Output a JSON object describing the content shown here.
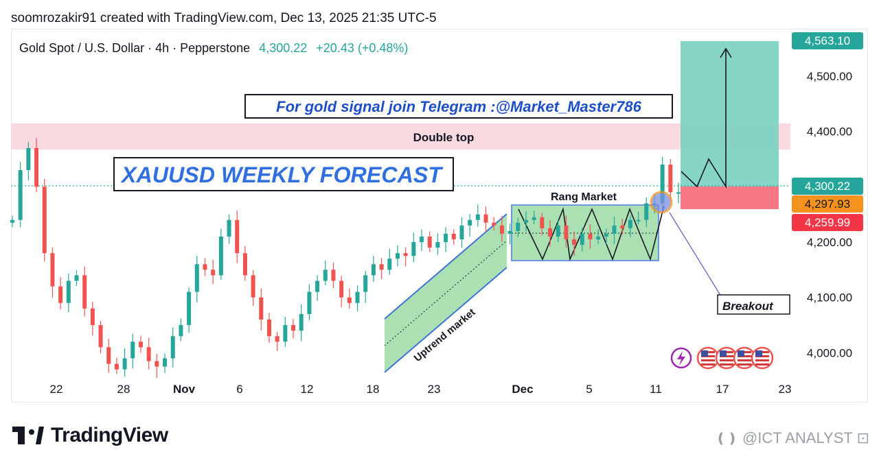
{
  "header": {
    "credit": "soomrozakir91 created with TradingView.com, Dec 13, 2025 21:35 UTC-5"
  },
  "symbol": {
    "name": "Gold Spot / U.S. Dollar · 4h · Pepperstone",
    "price": "4,300.22",
    "change": "+20.43 (+0.48%)"
  },
  "colors": {
    "up": "#26a69a",
    "down": "#ef5350",
    "target_zone": "#7fd3c4",
    "stop_zone": "#f4717d",
    "double_top_band": "#f9d2dc",
    "channel_fill": "#8fd69a",
    "channel_border": "#3c73d6",
    "price_tag_up": "#26a69a",
    "price_tag_orange": "#f7921e",
    "price_tag_red": "#f23645"
  },
  "annotations": {
    "telegram": "For gold signal join Telegram :@Market_Master786",
    "forecast": "XAUUSD WEEKLY FORECAST",
    "double_top": "Double top",
    "range": "Rang Market",
    "uptrend": "Uptrend market",
    "breakout": "Breakout"
  },
  "price_tags": [
    {
      "label": "4,563.10",
      "value": 4563.1,
      "color": "#26a69a"
    },
    {
      "label": "4,300.22",
      "value": 4300.22,
      "color": "#26a69a"
    },
    {
      "label": "4,297.93",
      "value": 4297.93,
      "color": "#f7921e"
    },
    {
      "label": "4,259.99",
      "value": 4259.99,
      "color": "#f23645"
    }
  ],
  "footer": {
    "brand": "TradingView",
    "watermark": "@ICT ANALYST"
  },
  "chart_data": {
    "type": "line",
    "title": "Gold Spot / U.S. Dollar · 4h · Pepperstone",
    "xlabel": "",
    "ylabel": "",
    "ylim": [
      3960,
      4600
    ],
    "y_ticks": [
      "4,000.00",
      "4,100.00",
      "4,200.00",
      "4,300.00",
      "4,400.00",
      "4,500.00"
    ],
    "y_tick_values": [
      4000,
      4100,
      4200,
      4300,
      4400,
      4500
    ],
    "x_ticks": [
      "22",
      "28",
      "Nov",
      "6",
      "12",
      "18",
      "23",
      "Dec",
      "5",
      "11",
      "17",
      "23"
    ],
    "x_tick_bold": [
      false,
      false,
      true,
      false,
      false,
      false,
      false,
      true,
      false,
      false,
      false,
      false
    ],
    "series": [
      {
        "values": [
          4240,
          4330,
          4370,
          4300,
          4180,
          4120,
          4090,
          4130,
          4140,
          4080,
          4050,
          4010,
          3980,
          3970,
          3990,
          4020,
          4010,
          3985,
          3975,
          3990,
          4030,
          4050,
          4110,
          4160,
          4150,
          4140,
          4210,
          4240,
          4180,
          4140,
          4100,
          4060,
          4030,
          4020,
          4050,
          4040,
          4070,
          4110,
          4130,
          4150,
          4130,
          4100,
          4090,
          4110,
          4140,
          4160,
          4150,
          4170,
          4180,
          4175,
          4200,
          4210,
          4190,
          4200,
          4215,
          4205,
          4230,
          4240,
          4250,
          4235,
          4230,
          4215,
          4220,
          4235,
          4240,
          4245,
          4225,
          4210,
          4230,
          4205,
          4195,
          4215,
          4205,
          4210,
          4215,
          4230,
          4225,
          4240,
          4240,
          4270,
          4270,
          4340,
          4290,
          4290
        ]
      }
    ],
    "grid": false,
    "legend": "none"
  }
}
